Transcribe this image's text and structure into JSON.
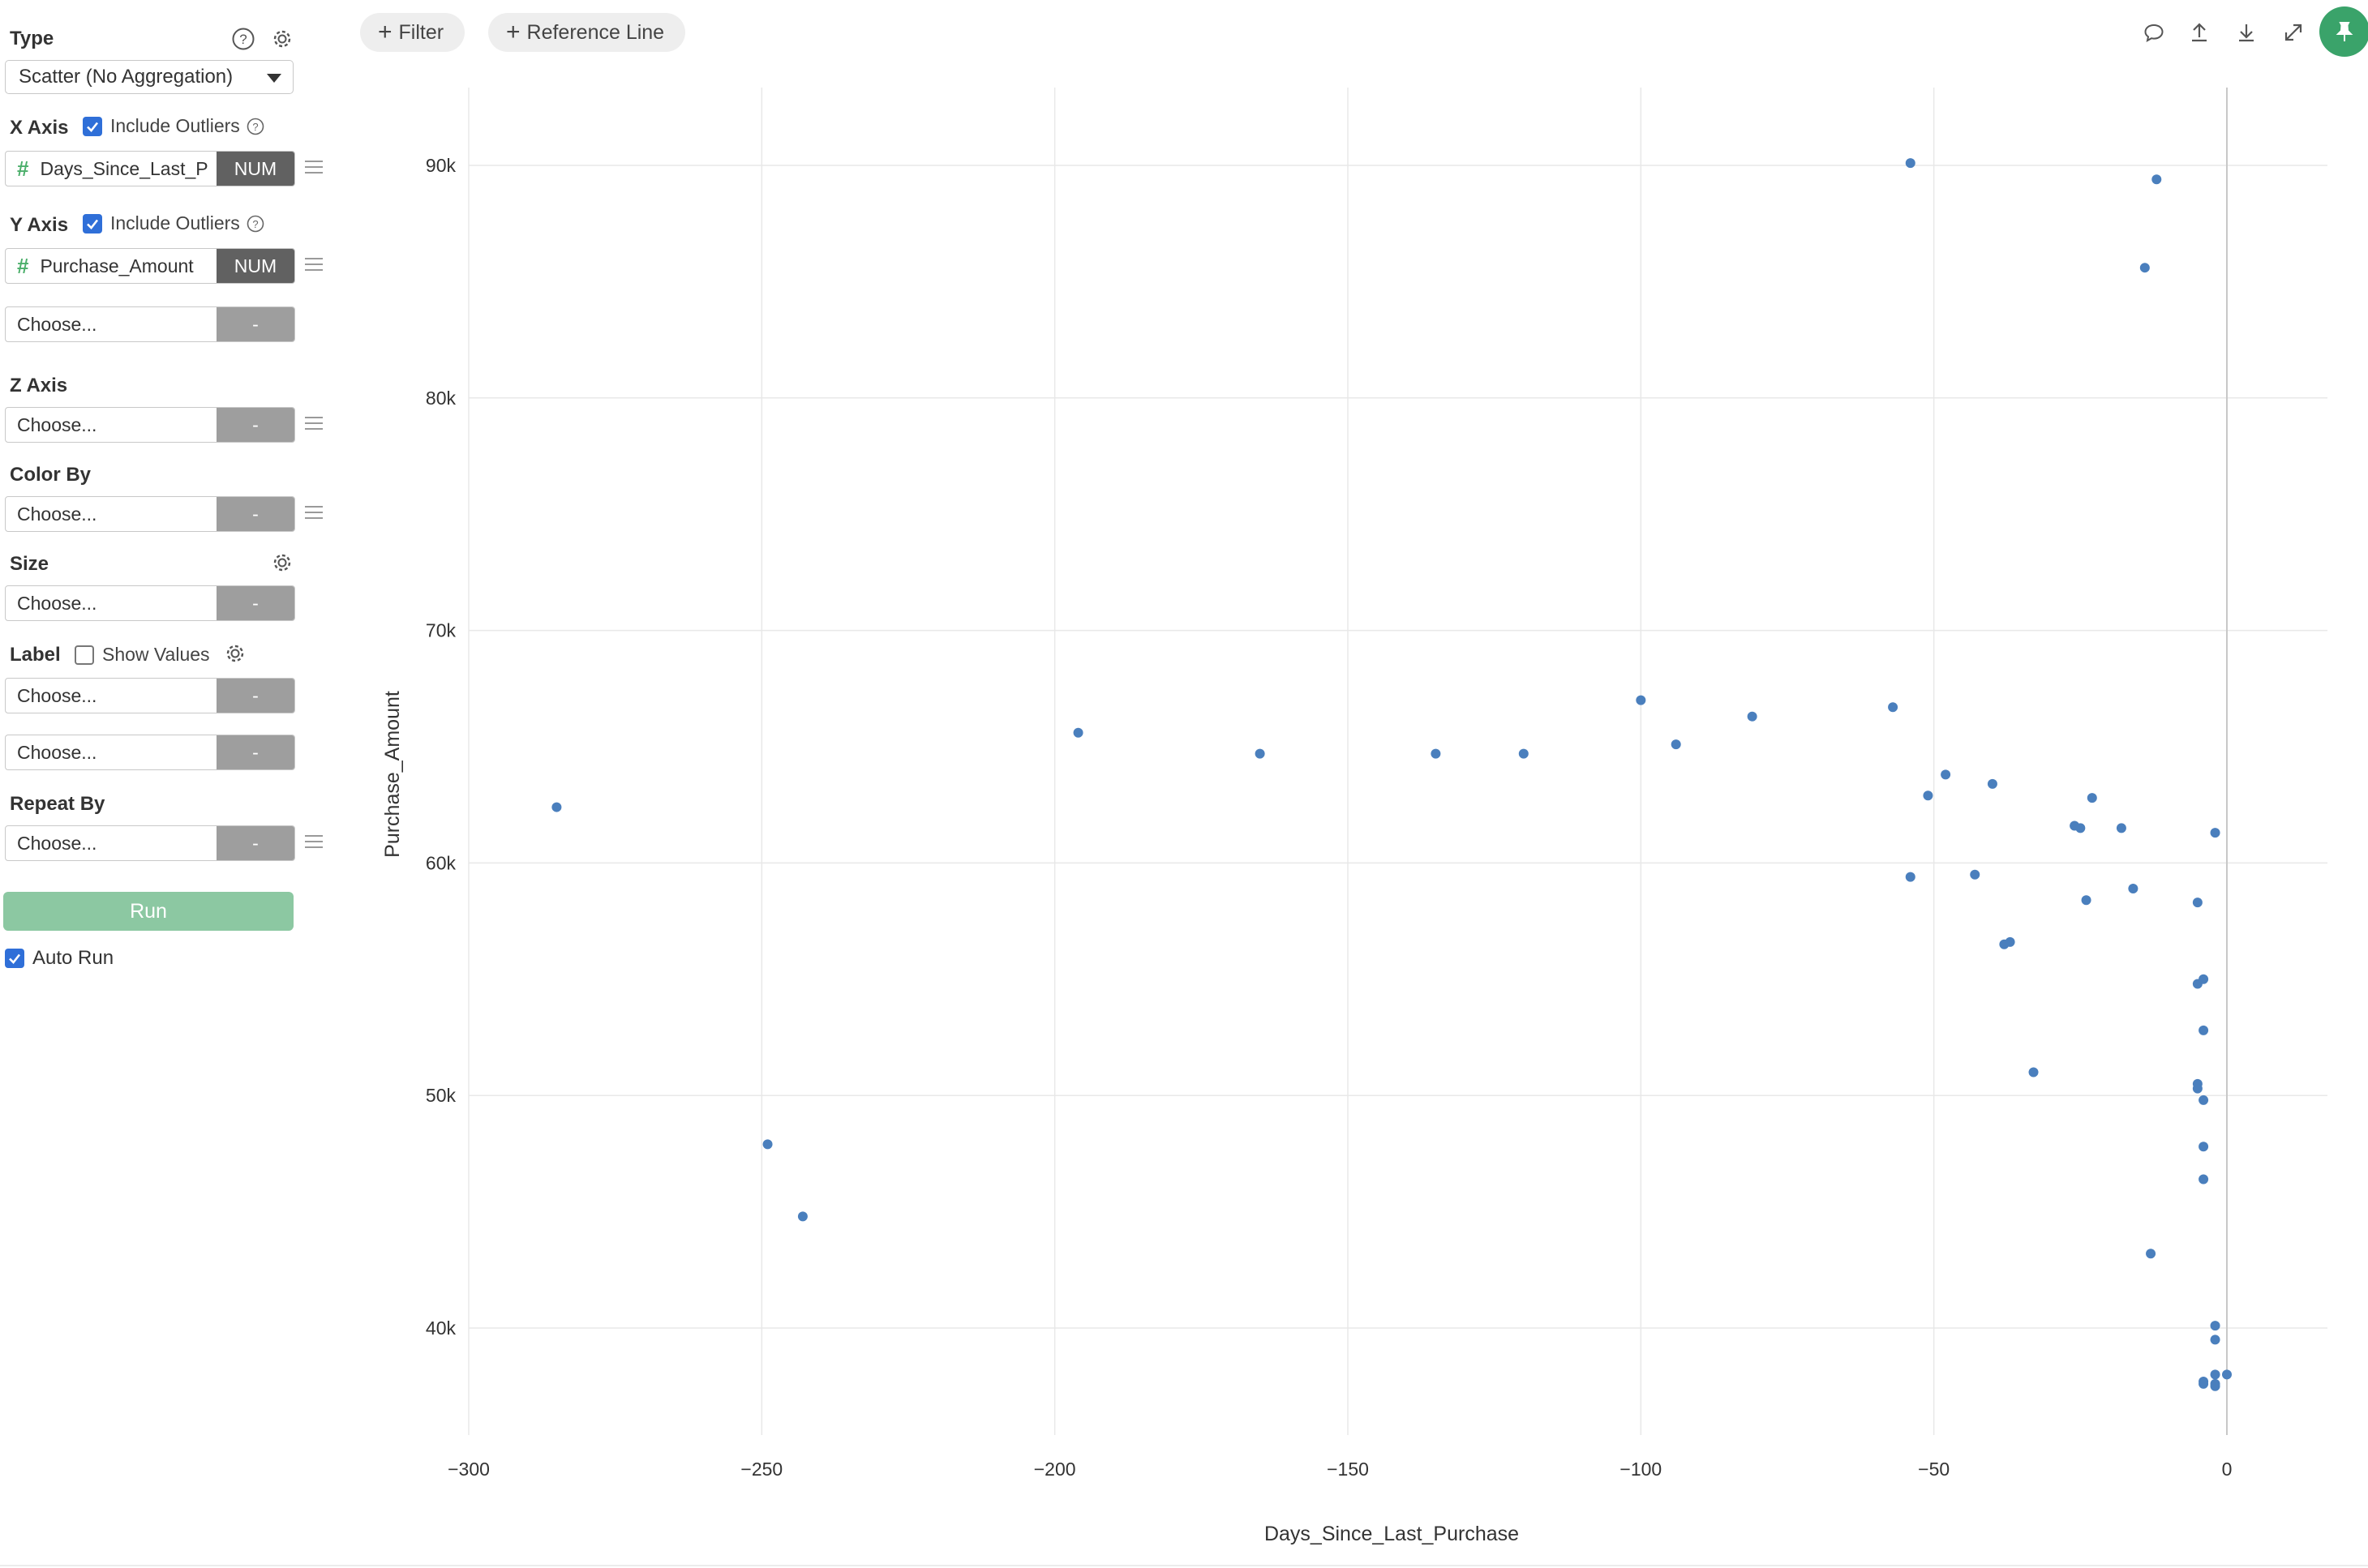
{
  "panel": {
    "type_title": "Type",
    "type_value": "Scatter (No Aggregation)",
    "x_axis": {
      "title": "X Axis",
      "include_outliers": "Include Outliers",
      "include_outliers_checked": true,
      "field_name": "Days_Since_Last_P",
      "field_type": "NUM"
    },
    "y_axis": {
      "title": "Y Axis",
      "include_outliers": "Include Outliers",
      "include_outliers_checked": true,
      "field_name": "Purchase_Amount",
      "field_type": "NUM",
      "extra_placeholder": "Choose...",
      "extra_type": "-"
    },
    "z_axis": {
      "title": "Z Axis",
      "placeholder": "Choose...",
      "type": "-"
    },
    "color_by": {
      "title": "Color By",
      "placeholder": "Choose...",
      "type": "-"
    },
    "size": {
      "title": "Size",
      "placeholder": "Choose...",
      "type": "-"
    },
    "label": {
      "title": "Label",
      "show_values": "Show Values",
      "show_values_checked": false,
      "placeholder_1": "Choose...",
      "placeholder_2": "Choose...",
      "type": "-"
    },
    "repeat_by": {
      "title": "Repeat By",
      "placeholder": "Choose...",
      "type": "-"
    },
    "run_label": "Run",
    "auto_run": {
      "label": "Auto Run",
      "checked": true
    }
  },
  "toolbar": {
    "filter_label": "Filter",
    "reference_line_label": "Reference Line",
    "icons": [
      "comment-icon",
      "upload-icon",
      "download-icon",
      "expand-icon",
      "pin-icon"
    ],
    "accent_color": "#3aa36a"
  },
  "chart_data": {
    "type": "scatter",
    "title": "",
    "xlabel": "Days_Since_Last_Purchase",
    "ylabel": "Purchase_Amount",
    "xlim": [
      -300,
      10
    ],
    "ylim": [
      35000,
      93000
    ],
    "x_ticks": [
      -300,
      -250,
      -200,
      -150,
      -100,
      -50,
      0
    ],
    "x_tick_labels": [
      "−300",
      "−250",
      "−200",
      "−150",
      "−100",
      "−50",
      "0"
    ],
    "y_ticks": [
      40000,
      50000,
      60000,
      70000,
      80000,
      90000
    ],
    "y_tick_labels": [
      "40k",
      "50k",
      "60k",
      "70k",
      "80k",
      "90k"
    ],
    "grid": true,
    "point_color": "#4a7fbd",
    "x": [
      -285,
      -249,
      -243,
      -196,
      -165,
      -135,
      -120,
      -100,
      -94,
      -81,
      -57,
      -54,
      -54,
      -51,
      -48,
      -43,
      -40,
      -38,
      -37,
      -33,
      -26,
      -25,
      -24,
      -23,
      -18,
      -16,
      -14,
      -13,
      -12,
      -5,
      -5,
      -5,
      -5,
      -4,
      -4,
      -4,
      -4,
      -4,
      -4,
      -4,
      -2,
      -2,
      -2,
      -2,
      -2,
      -2,
      0
    ],
    "y": [
      62400,
      47900,
      44800,
      65600,
      64700,
      64700,
      64700,
      67000,
      65100,
      66300,
      66700,
      90100,
      59400,
      62900,
      63800,
      59500,
      63400,
      56500,
      56600,
      51000,
      61600,
      61500,
      58400,
      62800,
      61500,
      58900,
      85600,
      43200,
      89400,
      58300,
      54800,
      50500,
      50300,
      55000,
      52800,
      49800,
      47800,
      46400,
      37700,
      37600,
      61300,
      40100,
      39500,
      38000,
      37600,
      37500,
      38000
    ]
  }
}
